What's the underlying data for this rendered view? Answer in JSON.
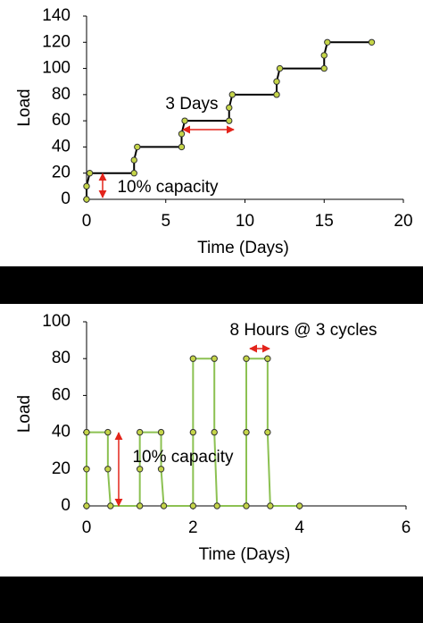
{
  "chart_data": [
    {
      "type": "line",
      "xlabel": "Time (Days)",
      "ylabel": "Load",
      "x": [
        0,
        0,
        0.2,
        3,
        3,
        3.2,
        6,
        6,
        6.2,
        9,
        9,
        9.2,
        12,
        12,
        12.2,
        15,
        15,
        15.2,
        18
      ],
      "values": [
        0,
        10,
        20,
        20,
        30,
        40,
        40,
        50,
        60,
        60,
        70,
        80,
        80,
        90,
        100,
        100,
        110,
        120,
        120
      ],
      "line_color": "#000000",
      "marker_color": "#c5d548",
      "xlim": [
        0,
        20
      ],
      "xticks": [
        0,
        5,
        10,
        15,
        20
      ],
      "ylim": [
        0,
        140
      ],
      "yticks": [
        0,
        20,
        40,
        60,
        80,
        100,
        120,
        140
      ],
      "annotations": [
        "3 Days",
        "10% capacity"
      ]
    },
    {
      "type": "line",
      "xlabel": "Time (Days)",
      "ylabel": "Load",
      "x": [
        0,
        0,
        0,
        0.4,
        0.4,
        0.45,
        1,
        1,
        1,
        1.4,
        1.4,
        1.45,
        2,
        2,
        2,
        2.4,
        2.4,
        2.45,
        3,
        3,
        3,
        3.4,
        3.4,
        3.45,
        4
      ],
      "values": [
        0,
        20,
        40,
        40,
        20,
        0,
        0,
        20,
        40,
        40,
        20,
        0,
        0,
        40,
        80,
        80,
        40,
        0,
        0,
        40,
        80,
        80,
        40,
        0,
        0
      ],
      "line_color": "#8cc152",
      "marker_color": "#c5d548",
      "xlim": [
        0,
        6
      ],
      "xticks": [
        0,
        2,
        4,
        6
      ],
      "ylim": [
        0,
        100
      ],
      "yticks": [
        0,
        20,
        40,
        60,
        80,
        100
      ],
      "annotations": [
        "8 Hours @ 3 cycles",
        "10% capacity"
      ]
    }
  ]
}
